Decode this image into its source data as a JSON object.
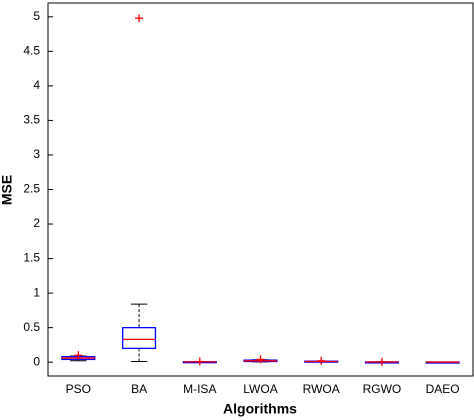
{
  "chart_data": {
    "type": "box",
    "x_label": "Algorithms",
    "y_label": "MSE",
    "categories": [
      "PSO",
      "BA",
      "M-ISA",
      "LWOA",
      "RWOA",
      "RGWO",
      "DAEO"
    ],
    "boxes": [
      {
        "min": 0.02,
        "q1": 0.04,
        "median": 0.06,
        "q3": 0.08,
        "max": 0.09,
        "outliers": [
          0.1
        ]
      },
      {
        "min": 0.01,
        "q1": 0.2,
        "median": 0.33,
        "q3": 0.5,
        "max": 0.84,
        "outliers": [
          4.98
        ]
      },
      {
        "min": 0.001,
        "q1": 0.003,
        "median": 0.005,
        "q3": 0.007,
        "max": 0.009,
        "outliers": [
          0.01
        ]
      },
      {
        "min": 0.005,
        "q1": 0.01,
        "median": 0.02,
        "q3": 0.03,
        "max": 0.035,
        "outliers": [
          0.04
        ]
      },
      {
        "min": 0.002,
        "q1": 0.005,
        "median": 0.01,
        "q3": 0.015,
        "max": 0.018,
        "outliers": [
          0.02
        ]
      },
      {
        "min": 0.001,
        "q1": 0.002,
        "median": 0.003,
        "q3": 0.004,
        "max": 0.0045,
        "outliers": [
          0.005
        ]
      },
      {
        "min": 0.001,
        "q1": 0.0015,
        "median": 0.002,
        "q3": 0.0025,
        "max": 0.003,
        "outliers": []
      }
    ],
    "box_color": "#0000ff",
    "median_color": "#ff0000",
    "whisker_color": "#000000",
    "outlier_color": "#ff0000",
    "ylim": [
      -0.2,
      5.2
    ],
    "yticks": [
      0,
      0.5,
      1,
      1.5,
      2,
      2.5,
      3,
      3.5,
      4,
      4.5,
      5
    ]
  }
}
